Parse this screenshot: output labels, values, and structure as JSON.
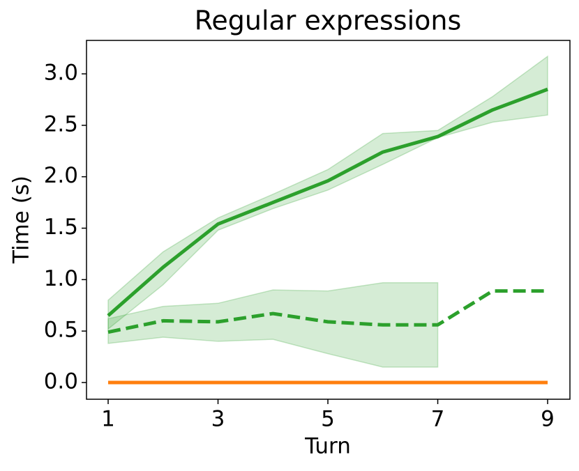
{
  "chart_data": {
    "type": "line",
    "title": "Regular expressions",
    "x_label": "Turn",
    "y_label": "Time (s)",
    "x": [
      1,
      2,
      3,
      4,
      5,
      6,
      7,
      8,
      9
    ],
    "series": [
      {
        "color": "#2ca02c",
        "dash": false,
        "values": [
          0.65,
          1.12,
          1.54,
          1.75,
          1.96,
          2.24,
          2.39,
          2.65,
          2.85
        ],
        "upper": [
          0.8,
          1.27,
          1.6,
          1.83,
          2.07,
          2.42,
          2.45,
          2.78,
          3.17
        ],
        "lower": [
          0.52,
          0.95,
          1.48,
          1.69,
          1.87,
          2.12,
          2.38,
          2.53,
          2.6
        ]
      },
      {
        "color": "#2ca02c",
        "dash": true,
        "values": [
          0.49,
          0.6,
          0.59,
          0.67,
          0.59,
          0.56,
          0.56,
          0.89,
          0.89
        ],
        "upper": [
          0.62,
          0.74,
          0.77,
          0.9,
          0.89,
          0.97,
          0.97,
          null,
          null
        ],
        "lower": [
          0.38,
          0.44,
          0.4,
          0.42,
          0.28,
          0.15,
          0.15,
          null,
          null
        ]
      },
      {
        "color": "#ff7f0e",
        "dash": false,
        "values": [
          0,
          0,
          0,
          0,
          0,
          0,
          0,
          0,
          0
        ]
      }
    ],
    "xlim": [
      0.606,
      9.406
    ],
    "ylim": [
      -0.1625,
      3.325
    ],
    "xticks": [
      1,
      3,
      5,
      7,
      9
    ],
    "yticks": [
      {
        "value": 0,
        "label": "0.0"
      },
      {
        "value": 0.5,
        "label": "0.5"
      },
      {
        "value": 1,
        "label": "1.0"
      },
      {
        "value": 1.5,
        "label": "1.5"
      },
      {
        "value": 2,
        "label": "2.0"
      },
      {
        "value": 2.5,
        "label": "2.5"
      },
      {
        "value": 3,
        "label": "3.0"
      }
    ],
    "grid": false
  }
}
